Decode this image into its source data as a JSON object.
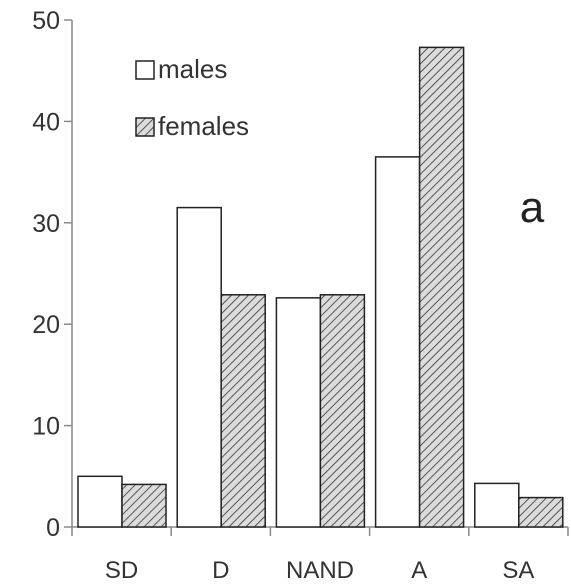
{
  "chart_data": {
    "type": "bar",
    "categories": [
      "SD",
      "D",
      "NAND",
      "A",
      "SA"
    ],
    "series": [
      {
        "name": "males",
        "values": [
          5.0,
          31.5,
          22.6,
          36.5,
          4.3
        ],
        "fill": "white",
        "color": "#ffffff"
      },
      {
        "name": "females",
        "values": [
          4.2,
          22.9,
          22.9,
          47.3,
          2.9
        ],
        "fill": "hatched",
        "color": "#cccccc"
      }
    ],
    "title": "",
    "xlabel": "",
    "ylabel": "",
    "ylim": [
      0,
      50
    ],
    "yticks": [
      0,
      10,
      20,
      30,
      40,
      50
    ],
    "grid": false,
    "legend_position": "top-left",
    "annotations": [
      "a"
    ]
  }
}
